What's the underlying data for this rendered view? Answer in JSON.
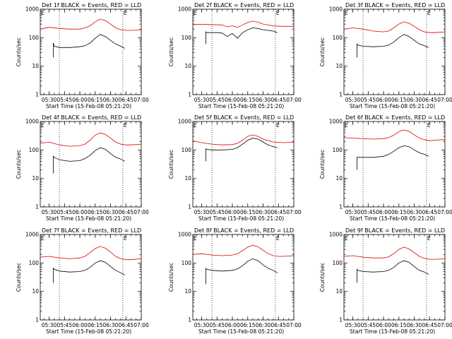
{
  "figure_colors": {
    "events": "#000000",
    "lld": "#e00000",
    "background": "#ffffff"
  },
  "chart_data": [
    {
      "type": "line",
      "title": "Det 1f BLACK = Events, RED = LLD",
      "xlabel": "Start Time (15-Feb-08 05:21:20)",
      "ylabel": "Counts/sec",
      "xlim": [
        "05:21:20",
        "07:00"
      ],
      "xticks": [
        "05:30",
        "05:45",
        "06:00",
        "06:15",
        "06:30",
        "06:45",
        "07:00"
      ],
      "yscale": "log",
      "ylim": [
        1,
        1000
      ],
      "yticks": [
        "1",
        "10",
        "100",
        "1000"
      ],
      "corner_marks": [
        "E",
        "E"
      ],
      "marker_times": [
        "05:40",
        "06:42"
      ],
      "series": [
        {
          "color": "#e00000",
          "x": [
            "05:21:20",
            "05:30",
            "05:40",
            "05:50",
            "06:00",
            "06:05",
            "06:10",
            "06:15",
            "06:20",
            "06:25",
            "06:30",
            "06:35",
            "06:40",
            "06:45",
            "06:50",
            "06:55",
            "07:00"
          ],
          "y": [
            200,
            230,
            210,
            200,
            200,
            220,
            260,
            360,
            450,
            400,
            300,
            220,
            190,
            180,
            180,
            185,
            190
          ]
        },
        {
          "color": "#000000",
          "x": [
            "05:34",
            "05:34",
            "05:35",
            "05:40",
            "05:50",
            "06:00",
            "06:05",
            "06:10",
            "06:15",
            "06:20",
            "06:25",
            "06:30",
            "06:35",
            "06:40",
            "06:44"
          ],
          "y": [
            20,
            65,
            50,
            45,
            45,
            48,
            52,
            65,
            95,
            130,
            110,
            80,
            60,
            50,
            42
          ]
        }
      ]
    },
    {
      "type": "line",
      "title": "Det 2f BLACK = Events, RED = LLD",
      "xlabel": "Start Time (15-Feb-08 05:21:20)",
      "ylabel": "Counts/sec",
      "xlim": [
        "05:21:20",
        "07:00"
      ],
      "xticks": [
        "05:30",
        "05:45",
        "06:00",
        "06:15",
        "06:30",
        "06:45",
        "07:00"
      ],
      "yscale": "log",
      "ylim": [
        1,
        1000
      ],
      "yticks": [
        "1",
        "10",
        "100",
        "1000"
      ],
      "corner_marks": [
        "E",
        "E"
      ],
      "marker_times": [
        "05:40",
        "06:42"
      ],
      "series": [
        {
          "color": "#e00000",
          "x": [
            "05:21:20",
            "05:35",
            "05:50",
            "05:55",
            "06:00",
            "06:05",
            "06:10",
            "06:15",
            "06:20",
            "06:25",
            "06:30",
            "06:40",
            "06:50",
            "07:00"
          ],
          "y": [
            290,
            290,
            280,
            240,
            260,
            230,
            280,
            340,
            380,
            350,
            300,
            260,
            250,
            250
          ]
        },
        {
          "color": "#000000",
          "x": [
            "05:34",
            "05:34",
            "05:35",
            "05:45",
            "05:50",
            "05:55",
            "06:00",
            "06:05",
            "06:10",
            "06:15",
            "06:20",
            "06:25",
            "06:30",
            "06:40",
            "06:44"
          ],
          "y": [
            60,
            160,
            150,
            150,
            145,
            110,
            140,
            95,
            150,
            190,
            220,
            210,
            190,
            170,
            150
          ]
        }
      ]
    },
    {
      "type": "line",
      "title": "Det 3f BLACK = Events, RED = LLD",
      "xlabel": "Start Time (15-Feb-08 05:21:20)",
      "ylabel": "Counts/sec",
      "xlim": [
        "05:21:20",
        "07:00"
      ],
      "xticks": [
        "05:30",
        "05:45",
        "06:00",
        "06:15",
        "06:30",
        "06:45",
        "07:00"
      ],
      "yscale": "log",
      "ylim": [
        1,
        1000
      ],
      "yticks": [
        "1",
        "10",
        "100",
        "1000"
      ],
      "corner_marks": [
        "E",
        "E"
      ],
      "marker_times": [
        "05:40",
        "06:42"
      ],
      "series": [
        {
          "color": "#e00000",
          "x": [
            "05:21:20",
            "05:30",
            "05:40",
            "05:50",
            "06:00",
            "06:05",
            "06:10",
            "06:15",
            "06:20",
            "06:25",
            "06:30",
            "06:35",
            "06:40",
            "06:45",
            "06:50",
            "07:00"
          ],
          "y": [
            200,
            220,
            200,
            170,
            160,
            170,
            220,
            300,
            360,
            320,
            250,
            190,
            160,
            150,
            150,
            160
          ]
        },
        {
          "color": "#000000",
          "x": [
            "05:34",
            "05:34",
            "05:35",
            "05:40",
            "05:50",
            "06:00",
            "06:05",
            "06:10",
            "06:15",
            "06:20",
            "06:25",
            "06:30",
            "06:35",
            "06:40",
            "06:44"
          ],
          "y": [
            20,
            60,
            55,
            50,
            48,
            50,
            55,
            70,
            100,
            130,
            110,
            80,
            60,
            52,
            45
          ]
        }
      ]
    },
    {
      "type": "line",
      "title": "Det 4f BLACK = Events, RED = LLD",
      "xlabel": "Start Time (15-Feb-08 05:21:20)",
      "ylabel": "Counts/sec",
      "xlim": [
        "05:21:20",
        "07:00"
      ],
      "xticks": [
        "05:30",
        "05:45",
        "06:00",
        "06:15",
        "06:30",
        "06:45",
        "07:00"
      ],
      "yscale": "log",
      "ylim": [
        1,
        1000
      ],
      "yticks": [
        "1",
        "10",
        "100",
        "1000"
      ],
      "corner_marks": [
        "E",
        "E"
      ],
      "marker_times": [
        "05:40",
        "06:42"
      ],
      "series": [
        {
          "color": "#e00000",
          "x": [
            "05:21:20",
            "05:30",
            "05:40",
            "05:50",
            "06:00",
            "06:05",
            "06:10",
            "06:15",
            "06:20",
            "06:25",
            "06:30",
            "06:35",
            "06:40",
            "06:45",
            "06:50",
            "07:00"
          ],
          "y": [
            170,
            190,
            150,
            135,
            140,
            160,
            220,
            330,
            400,
            350,
            260,
            190,
            160,
            150,
            150,
            160
          ]
        },
        {
          "color": "#000000",
          "x": [
            "05:34",
            "05:34",
            "05:35",
            "05:40",
            "05:50",
            "06:00",
            "06:05",
            "06:10",
            "06:15",
            "06:20",
            "06:25",
            "06:30",
            "06:35",
            "06:40",
            "06:44"
          ],
          "y": [
            15,
            60,
            55,
            45,
            40,
            42,
            50,
            65,
            95,
            120,
            105,
            75,
            55,
            48,
            40
          ]
        }
      ]
    },
    {
      "type": "line",
      "title": "Det 5f BLACK = Events, RED = LLD",
      "xlabel": "Start Time (15-Feb-08 05:21:20)",
      "ylabel": "Counts/sec",
      "xlim": [
        "05:21:20",
        "07:00"
      ],
      "xticks": [
        "05:30",
        "05:45",
        "06:00",
        "06:15",
        "06:30",
        "06:45",
        "07:00"
      ],
      "yscale": "log",
      "ylim": [
        1,
        1000
      ],
      "yticks": [
        "1",
        "10",
        "100",
        "1000"
      ],
      "corner_marks": [
        "E",
        "E"
      ],
      "marker_times": [
        "05:40",
        "06:42"
      ],
      "series": [
        {
          "color": "#e00000",
          "x": [
            "05:21:20",
            "05:30",
            "05:40",
            "05:50",
            "06:00",
            "06:05",
            "06:10",
            "06:15",
            "06:20",
            "06:25",
            "06:30",
            "06:40",
            "06:50",
            "07:00"
          ],
          "y": [
            210,
            180,
            160,
            150,
            155,
            170,
            220,
            300,
            340,
            300,
            240,
            190,
            180,
            190
          ]
        },
        {
          "color": "#000000",
          "x": [
            "05:34",
            "05:34",
            "05:35",
            "05:40",
            "05:50",
            "06:00",
            "06:05",
            "06:10",
            "06:15",
            "06:20",
            "06:25",
            "06:30",
            "06:35",
            "06:40",
            "06:44"
          ],
          "y": [
            40,
            110,
            105,
            100,
            100,
            105,
            120,
            160,
            220,
            260,
            240,
            190,
            150,
            130,
            120
          ]
        }
      ]
    },
    {
      "type": "line",
      "title": "Det 6f BLACK = Events, RED = LLD",
      "xlabel": "Start Time (15-Feb-08 05:21:20)",
      "ylabel": "Counts/sec",
      "xlim": [
        "05:21:20",
        "07:00"
      ],
      "xticks": [
        "05:30",
        "05:45",
        "06:00",
        "06:15",
        "06:30",
        "06:45",
        "07:00"
      ],
      "yscale": "log",
      "ylim": [
        1,
        1000
      ],
      "yticks": [
        "1",
        "10",
        "100",
        "1000"
      ],
      "corner_marks": [
        "E",
        "E"
      ],
      "marker_times": [
        "05:40",
        "06:42"
      ],
      "series": [
        {
          "color": "#e00000",
          "x": [
            "05:21:20",
            "05:30",
            "05:40",
            "05:50",
            "06:00",
            "06:05",
            "06:10",
            "06:15",
            "06:20",
            "06:25",
            "06:30",
            "06:35",
            "06:40",
            "06:45",
            "06:50",
            "07:00"
          ],
          "y": [
            270,
            260,
            250,
            240,
            250,
            270,
            330,
            440,
            500,
            450,
            340,
            260,
            230,
            210,
            220,
            230
          ]
        },
        {
          "color": "#000000",
          "x": [
            "05:34",
            "05:34",
            "05:35",
            "05:40",
            "05:50",
            "06:00",
            "06:05",
            "06:10",
            "06:15",
            "06:20",
            "06:25",
            "06:30",
            "06:35",
            "06:40",
            "06:44"
          ],
          "y": [
            20,
            55,
            55,
            55,
            55,
            60,
            70,
            90,
            120,
            140,
            130,
            100,
            80,
            70,
            60
          ]
        }
      ]
    },
    {
      "type": "line",
      "title": "Det 7f BLACK = Events, RED = LLD",
      "xlabel": "Start Time (15-Feb-08 05:21:20)",
      "ylabel": "Counts/sec",
      "xlim": [
        "05:21:20",
        "07:00"
      ],
      "xticks": [
        "05:30",
        "05:45",
        "06:00",
        "06:15",
        "06:30",
        "06:45",
        "07:00"
      ],
      "yscale": "log",
      "ylim": [
        1,
        1000
      ],
      "yticks": [
        "1",
        "10",
        "100",
        "1000"
      ],
      "corner_marks": [
        "E",
        "E"
      ],
      "marker_times": [
        "05:40",
        "06:42"
      ],
      "series": [
        {
          "color": "#e00000",
          "x": [
            "05:21:20",
            "05:30",
            "05:40",
            "05:50",
            "06:00",
            "06:05",
            "06:10",
            "06:15",
            "06:20",
            "06:25",
            "06:30",
            "06:35",
            "06:40",
            "06:45",
            "06:50",
            "07:00"
          ],
          "y": [
            160,
            170,
            150,
            140,
            150,
            170,
            230,
            320,
            380,
            330,
            240,
            170,
            140,
            130,
            130,
            140
          ]
        },
        {
          "color": "#000000",
          "x": [
            "05:34",
            "05:34",
            "05:35",
            "05:40",
            "05:50",
            "06:00",
            "06:05",
            "06:10",
            "06:15",
            "06:20",
            "06:25",
            "06:30",
            "06:35",
            "06:40",
            "06:44"
          ],
          "y": [
            20,
            65,
            60,
            52,
            48,
            50,
            55,
            70,
            100,
            120,
            105,
            75,
            55,
            45,
            38
          ]
        }
      ]
    },
    {
      "type": "line",
      "title": "Det 8f BLACK = Events, RED = LLD",
      "xlabel": "Start Time (15-Feb-08 05:21:20)",
      "ylabel": "Counts/sec",
      "xlim": [
        "05:21:20",
        "07:00"
      ],
      "xticks": [
        "05:30",
        "05:45",
        "06:00",
        "06:15",
        "06:30",
        "06:45",
        "07:00"
      ],
      "yscale": "log",
      "ylim": [
        1,
        1000
      ],
      "yticks": [
        "1",
        "10",
        "100",
        "1000"
      ],
      "corner_marks": [
        "E",
        "E"
      ],
      "marker_times": [
        "05:40",
        "06:42"
      ],
      "series": [
        {
          "color": "#e00000",
          "x": [
            "05:21:20",
            "05:30",
            "05:40",
            "05:50",
            "06:00",
            "06:05",
            "06:10",
            "06:15",
            "06:20",
            "06:25",
            "06:30",
            "06:35",
            "06:40",
            "06:45",
            "06:50",
            "07:00"
          ],
          "y": [
            200,
            210,
            190,
            180,
            190,
            210,
            270,
            360,
            420,
            370,
            280,
            210,
            180,
            170,
            170,
            180
          ]
        },
        {
          "color": "#000000",
          "x": [
            "05:34",
            "05:34",
            "05:35",
            "05:40",
            "05:50",
            "06:00",
            "06:05",
            "06:10",
            "06:15",
            "06:20",
            "06:25",
            "06:30",
            "06:35",
            "06:40",
            "06:44"
          ],
          "y": [
            18,
            65,
            60,
            55,
            52,
            55,
            62,
            80,
            115,
            140,
            120,
            85,
            65,
            55,
            45
          ]
        }
      ]
    },
    {
      "type": "line",
      "title": "Det 9f BLACK = Events, RED = LLD",
      "xlabel": "Start Time (15-Feb-08 05:21:20)",
      "ylabel": "Counts/sec",
      "xlim": [
        "05:21:20",
        "07:00"
      ],
      "xticks": [
        "05:30",
        "05:45",
        "06:00",
        "06:15",
        "06:30",
        "06:45",
        "07:00"
      ],
      "yscale": "log",
      "ylim": [
        1,
        1000
      ],
      "yticks": [
        "1",
        "10",
        "100",
        "1000"
      ],
      "corner_marks": [
        "E",
        "E"
      ],
      "marker_times": [
        "05:40",
        "06:42"
      ],
      "series": [
        {
          "color": "#e00000",
          "x": [
            "05:21:20",
            "05:30",
            "05:40",
            "05:50",
            "06:00",
            "06:05",
            "06:10",
            "06:15",
            "06:20",
            "06:25",
            "06:30",
            "06:35",
            "06:40",
            "06:45",
            "06:50",
            "07:00"
          ],
          "y": [
            170,
            180,
            160,
            150,
            150,
            165,
            210,
            300,
            360,
            310,
            230,
            170,
            145,
            135,
            135,
            140
          ]
        },
        {
          "color": "#000000",
          "x": [
            "05:34",
            "05:34",
            "05:35",
            "05:40",
            "05:50",
            "06:00",
            "06:05",
            "06:10",
            "06:15",
            "06:20",
            "06:25",
            "06:30",
            "06:35",
            "06:40",
            "06:44"
          ],
          "y": [
            20,
            60,
            55,
            50,
            48,
            50,
            55,
            70,
            100,
            120,
            105,
            75,
            55,
            48,
            40
          ]
        }
      ]
    }
  ]
}
